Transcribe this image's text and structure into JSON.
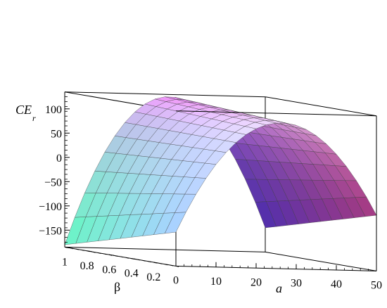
{
  "chart_data": {
    "type": "surface3d",
    "title": "",
    "x_axis": {
      "symbol": "a",
      "range": [
        0,
        50
      ],
      "ticks": [
        "0",
        "10",
        "20",
        "30",
        "40",
        "50"
      ]
    },
    "y_axis": {
      "symbol": "β",
      "range": [
        0,
        1
      ],
      "ticks": [
        "0.2",
        "0.4",
        "0.6",
        "0.8",
        "1"
      ]
    },
    "z_axis": {
      "symbol": "CE",
      "subscript": "r",
      "range": [
        -185,
        135
      ],
      "ticks": [
        "100",
        "50",
        "0",
        "−50",
        "−100",
        "−150"
      ]
    },
    "grid_lines": "surface mesh 20 × 10",
    "colors": {
      "a_low_beta_low": "#9cc0f0",
      "a_low_beta_high": "#5ce6b4",
      "a_mid_beta_low": "#ead2f6",
      "a_mid_beta_high": "#ec8cf2",
      "a_high_beta_low": "#e64cb0",
      "a_high_beta_high": "#6a3ef0"
    },
    "corner_values": {
      "a0_beta0": -115,
      "a0_beta1": -180,
      "a50_beta0": -70,
      "a50_beta1": -135
    },
    "peak_values": {
      "beta0": 115,
      "beta1": 130
    }
  }
}
